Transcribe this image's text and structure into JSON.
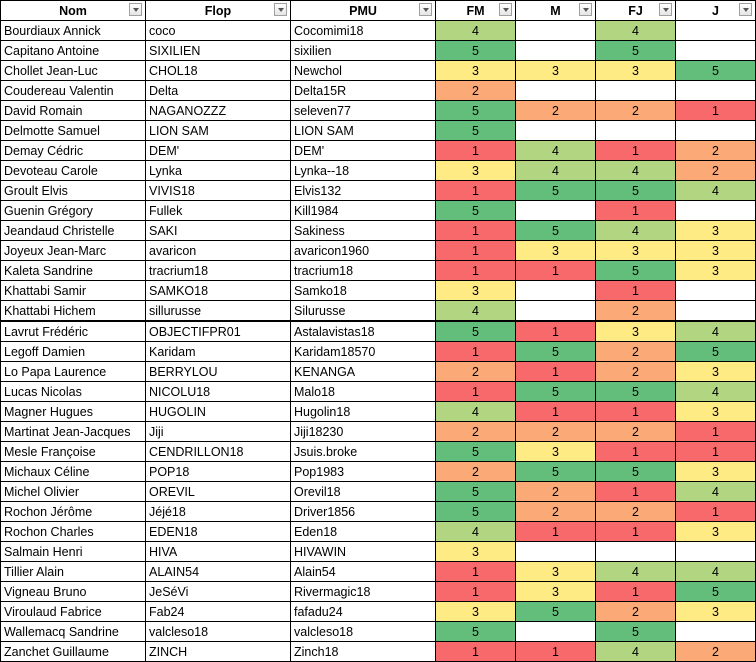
{
  "headers": [
    "Nom",
    "Flop",
    "PMU",
    "FM",
    "M",
    "FJ",
    "J"
  ],
  "colors": {
    "1": "#F8696B",
    "2": "#FBAA77",
    "3": "#FFEB84",
    "4": "#B1D580",
    "5": "#63BE7B"
  },
  "rows": [
    [
      "Bourdiaux Annick",
      "coco",
      "Cocomimi18",
      "4",
      "",
      "4",
      ""
    ],
    [
      "Capitano Antoine",
      "SIXILIEN",
      "sixilien",
      "5",
      "",
      "5",
      ""
    ],
    [
      "Chollet Jean-Luc",
      "CHOL18",
      "Newchol",
      "3",
      "3",
      "3",
      "5"
    ],
    [
      "Coudereau Valentin",
      "Delta",
      "Delta15R",
      "2",
      "",
      "",
      ""
    ],
    [
      "David Romain",
      "NAGANOZZZ",
      "seleven77",
      "5",
      "2",
      "2",
      "1"
    ],
    [
      "Delmotte Samuel",
      "LION SAM",
      "LION SAM",
      "5",
      "",
      "",
      ""
    ],
    [
      "Demay Cédric",
      "DEM'",
      "DEM'",
      "1",
      "4",
      "1",
      "2"
    ],
    [
      "Devoteau Carole",
      "Lynka",
      "Lynka--18",
      "3",
      "4",
      "4",
      "2"
    ],
    [
      "Groult Elvis",
      "VIVIS18",
      "Elvis132",
      "1",
      "5",
      "5",
      "4"
    ],
    [
      "Guenin Grégory",
      "Fullek",
      "Kill1984",
      "5",
      "",
      "1",
      ""
    ],
    [
      "Jeandaud Christelle",
      "SAKI",
      "Sakiness",
      "1",
      "5",
      "4",
      "3"
    ],
    [
      "Joyeux Jean-Marc",
      "avaricon",
      "avaricon1960",
      "1",
      "3",
      "3",
      "3"
    ],
    [
      "Kaleta Sandrine",
      "tracrium18",
      "tracrium18",
      "1",
      "1",
      "5",
      "3"
    ],
    [
      "Khattabi Samir",
      "SAMKO18",
      "Samko18",
      "3",
      "",
      "1",
      ""
    ],
    [
      "Khattabi Hichem",
      "sillurusse",
      "Silurusse",
      "4",
      "",
      "2",
      ""
    ],
    [
      "Lavrut Frédéric",
      "OBJECTIFPR01",
      "Astalavistas18",
      "5",
      "1",
      "3",
      "4"
    ],
    [
      "Legoff Damien",
      "Karidam",
      "Karidam18570",
      "1",
      "5",
      "2",
      "5"
    ],
    [
      "Lo Papa Laurence",
      "BERRYLOU",
      "KENANGA",
      "2",
      "1",
      "2",
      "3"
    ],
    [
      "Lucas Nicolas",
      "NICOLU18",
      "Malo18",
      "1",
      "5",
      "5",
      "4"
    ],
    [
      "Magner Hugues",
      "HUGOLIN",
      "Hugolin18",
      "4",
      "1",
      "1",
      "3"
    ],
    [
      "Martinat Jean-Jacques",
      "Jiji",
      "Jiji18230",
      "2",
      "2",
      "2",
      "1"
    ],
    [
      "Mesle Françoise",
      "CENDRILLON18",
      "Jsuis.broke",
      "5",
      "3",
      "1",
      "1"
    ],
    [
      "Michaux Céline",
      "POP18",
      "Pop1983",
      "2",
      "5",
      "5",
      "3"
    ],
    [
      "Michel Olivier",
      "OREVIL",
      "Orevil18",
      "5",
      "2",
      "1",
      "4"
    ],
    [
      "Rochon Jérôme",
      "Jéjé18",
      "Driver1856",
      "5",
      "2",
      "2",
      "1"
    ],
    [
      "Rochon Charles",
      "EDEN18",
      "Eden18",
      "4",
      "1",
      "1",
      "3"
    ],
    [
      "Salmain Henri",
      "HIVA",
      "HIVAWIN",
      "3",
      "",
      "",
      ""
    ],
    [
      "Tillier Alain",
      "ALAIN54",
      "Alain54",
      "1",
      "3",
      "4",
      "4"
    ],
    [
      "Vigneau Bruno",
      "JeSéVi",
      "Rivermagic18",
      "1",
      "3",
      "1",
      "5"
    ],
    [
      "Viroulaud Fabrice",
      "Fab24",
      "fafadu24",
      "3",
      "5",
      "2",
      "3"
    ],
    [
      "Wallemacq Sandrine",
      "valcleso18",
      "valcleso18",
      "5",
      "",
      "5",
      ""
    ],
    [
      "Zanchet Guillaume",
      "ZINCH",
      "Zinch18",
      "1",
      "1",
      "4",
      "2"
    ]
  ]
}
